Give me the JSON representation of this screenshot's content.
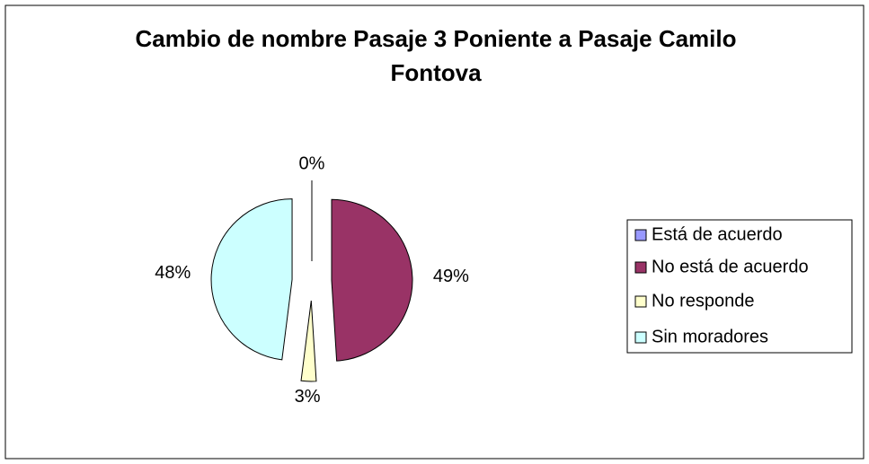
{
  "chart_data": {
    "type": "pie",
    "title": "Cambio de nombre Pasaje 3 Poniente a Pasaje Camilo Fontova",
    "categories": [
      "Está de acuerdo",
      "No está de acuerdo",
      "No responde",
      "Sin moradores"
    ],
    "values": [
      0,
      49,
      3,
      48
    ],
    "value_labels": [
      "0%",
      "49%",
      "3%",
      "48%"
    ],
    "colors": [
      "#9999ff",
      "#993366",
      "#ffffcc",
      "#ccffff"
    ],
    "legend": "right"
  }
}
